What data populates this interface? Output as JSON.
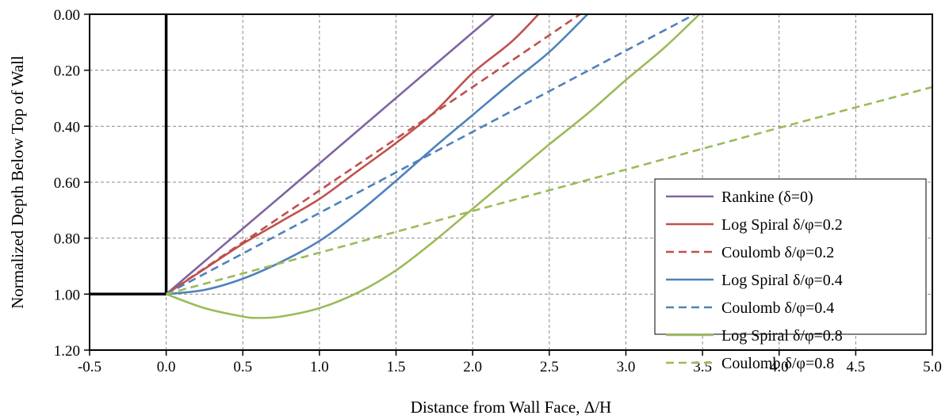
{
  "chart_data": {
    "type": "line",
    "title": "",
    "xlabel": "Distance from Wall Face, Δ/H",
    "ylabel": "Normalized Depth Below Top of Wall",
    "xlim": [
      -0.5,
      5.0
    ],
    "ylim": [
      0.0,
      1.2
    ],
    "y_inverted": true,
    "grid": "dashed",
    "legend_position": "right",
    "x_ticks": [
      "-0.5",
      "0.0",
      "0.5",
      "1.0",
      "1.5",
      "2.0",
      "2.5",
      "3.0",
      "3.5",
      "4.0",
      "4.5",
      "5.0"
    ],
    "y_ticks": [
      "0.00",
      "0.20",
      "0.40",
      "0.60",
      "0.80",
      "1.00",
      "1.20"
    ],
    "wall": {
      "points": [
        [
          0.0,
          0.0
        ],
        [
          0.0,
          1.0
        ],
        [
          -0.5,
          1.0
        ]
      ]
    },
    "series": [
      {
        "name": "Rankine (δ=0)",
        "color": "#8064A2",
        "style": "solid",
        "points": [
          [
            0.0,
            1.0
          ],
          [
            0.5,
            0.766
          ],
          [
            1.0,
            0.533
          ],
          [
            1.5,
            0.299
          ],
          [
            2.0,
            0.065
          ],
          [
            2.14,
            0.0
          ]
        ]
      },
      {
        "name": "Log Spiral δ/φ=0.2",
        "color": "#C0504D",
        "style": "solid",
        "points": [
          [
            0.0,
            1.0
          ],
          [
            0.25,
            0.91
          ],
          [
            0.5,
            0.82
          ],
          [
            0.75,
            0.74
          ],
          [
            1.0,
            0.66
          ],
          [
            1.25,
            0.56
          ],
          [
            1.5,
            0.46
          ],
          [
            1.75,
            0.35
          ],
          [
            2.0,
            0.21
          ],
          [
            2.25,
            0.1
          ],
          [
            2.43,
            0.0
          ]
        ]
      },
      {
        "name": "Coulomb δ/φ=0.2",
        "color": "#C0504D",
        "style": "dashed",
        "points": [
          [
            0.0,
            1.0
          ],
          [
            0.5,
            0.815
          ],
          [
            1.0,
            0.63
          ],
          [
            1.5,
            0.445
          ],
          [
            2.0,
            0.26
          ],
          [
            2.5,
            0.075
          ],
          [
            2.7,
            0.0
          ]
        ]
      },
      {
        "name": "Log Spiral δ/φ=0.4",
        "color": "#4F81BD",
        "style": "solid",
        "points": [
          [
            0.0,
            1.0
          ],
          [
            0.25,
            0.985
          ],
          [
            0.5,
            0.945
          ],
          [
            0.75,
            0.885
          ],
          [
            1.0,
            0.81
          ],
          [
            1.25,
            0.71
          ],
          [
            1.5,
            0.595
          ],
          [
            1.75,
            0.475
          ],
          [
            2.0,
            0.36
          ],
          [
            2.25,
            0.245
          ],
          [
            2.5,
            0.135
          ],
          [
            2.75,
            0.0
          ]
        ]
      },
      {
        "name": "Coulomb δ/φ=0.4",
        "color": "#4F81BD",
        "style": "dashed",
        "points": [
          [
            0.0,
            1.0
          ],
          [
            0.5,
            0.855
          ],
          [
            1.0,
            0.71
          ],
          [
            1.5,
            0.565
          ],
          [
            2.0,
            0.42
          ],
          [
            2.5,
            0.275
          ],
          [
            3.0,
            0.13
          ],
          [
            3.45,
            0.0
          ]
        ]
      },
      {
        "name": "Log Spiral δ/φ=0.8",
        "color": "#9BBB59",
        "style": "solid",
        "points": [
          [
            0.0,
            1.0
          ],
          [
            0.25,
            1.05
          ],
          [
            0.5,
            1.08
          ],
          [
            0.6,
            1.085
          ],
          [
            0.75,
            1.08
          ],
          [
            1.0,
            1.05
          ],
          [
            1.25,
            0.995
          ],
          [
            1.5,
            0.915
          ],
          [
            1.75,
            0.81
          ],
          [
            2.0,
            0.695
          ],
          [
            2.25,
            0.58
          ],
          [
            2.5,
            0.465
          ],
          [
            2.75,
            0.355
          ],
          [
            3.0,
            0.235
          ],
          [
            3.25,
            0.12
          ],
          [
            3.48,
            0.0
          ]
        ]
      },
      {
        "name": "Coulomb δ/φ=0.8",
        "color": "#9BBB59",
        "style": "dashed",
        "points": [
          [
            0.0,
            1.0
          ],
          [
            1.0,
            0.852
          ],
          [
            2.0,
            0.703
          ],
          [
            3.0,
            0.555
          ],
          [
            4.0,
            0.406
          ],
          [
            5.0,
            0.26
          ]
        ]
      }
    ]
  }
}
